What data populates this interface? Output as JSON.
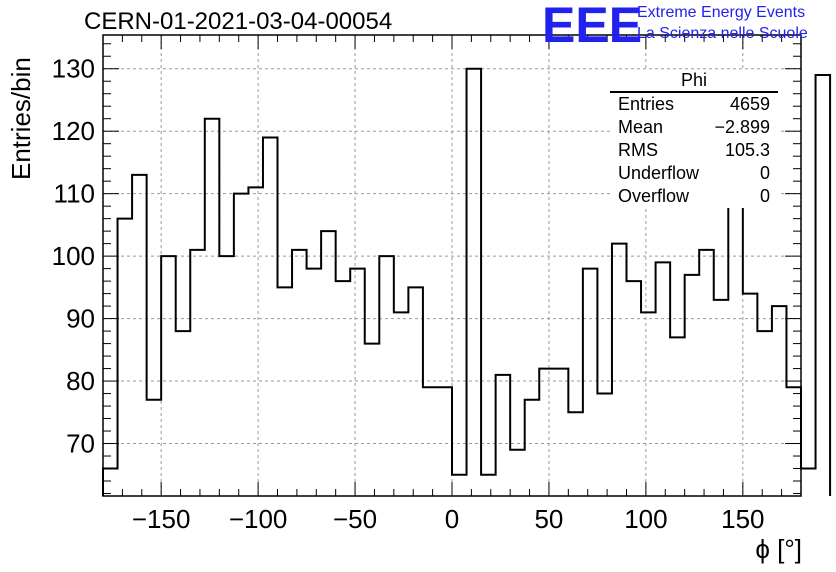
{
  "chart_data": {
    "type": "histogram",
    "title": "CERN-01-2021-03-04-00054",
    "xlabel": "ϕ [°]",
    "ylabel": "Entries/bin",
    "xlim": [
      -180,
      180
    ],
    "ylim": [
      61.6,
      135.4
    ],
    "grid": true,
    "x_ticks": [
      -150,
      -100,
      -50,
      0,
      50,
      100,
      150
    ],
    "x_tick_labels": [
      "−150",
      "−100",
      "−50",
      "0",
      "50",
      "100",
      "150"
    ],
    "y_ticks": [
      70,
      80,
      90,
      100,
      110,
      120,
      130
    ],
    "y_tick_labels": [
      "70",
      "80",
      "90",
      "100",
      "110",
      "120",
      "130"
    ],
    "bin_edges_start": -180,
    "bin_width": 7.5,
    "values": [
      66,
      106,
      113,
      77,
      100,
      88,
      101,
      122,
      100,
      110,
      111,
      119,
      95,
      101,
      98,
      104,
      96,
      98,
      86,
      100,
      91,
      95,
      79,
      79,
      65,
      130,
      65,
      81,
      69,
      77,
      82,
      82,
      75,
      98,
      78,
      102,
      96,
      91,
      99,
      87,
      97,
      101,
      93,
      108,
      94,
      88,
      92,
      79,
      66,
      129
    ],
    "stats": {
      "title": "Phi",
      "rows": [
        {
          "label": "Entries",
          "value": "4659"
        },
        {
          "label": "Mean",
          "value": "−2.899"
        },
        {
          "label": "RMS",
          "value": "105.3"
        },
        {
          "label": "Underflow",
          "value": "0"
        },
        {
          "label": "Overflow",
          "value": "0"
        }
      ]
    }
  },
  "logo": {
    "mark": "EEE",
    "line1": "Extreme Energy Events",
    "line2": "La Scienza nelle Scuole",
    "color": "#2222ee"
  }
}
